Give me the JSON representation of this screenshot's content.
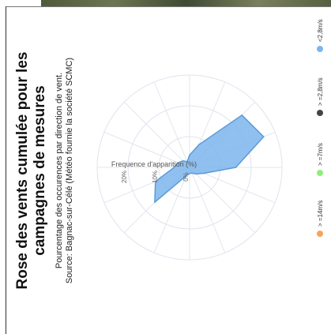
{
  "chart_data": {
    "type": "polar-area",
    "title_lines": [
      "Rose des vents cumulée pour les",
      "campagnes de mesures"
    ],
    "subtitle_lines": [
      "Pourcentage des occurences par direction de vent.",
      "Source: Bagnac-sur-Célé (Météo fournie la société SCMC)"
    ],
    "axis_title": "Frequence d'apparition (%)",
    "radial_ticks": [
      "0%",
      "10%",
      "20%"
    ],
    "radial_max": 30,
    "directions": [
      0,
      22.5,
      45,
      67.5,
      90,
      112.5,
      135,
      157.5,
      180,
      202.5,
      225,
      247.5,
      270,
      292.5,
      315,
      337.5
    ],
    "series": [
      {
        "name": "<2,8m/s",
        "color": "#7cb5ec",
        "values": [
          5,
          4,
          3,
          2,
          4,
          8,
          24,
          26,
          15,
          5,
          3,
          2,
          2,
          3,
          16,
          12
        ]
      },
      {
        "name": "> =2,8m/s",
        "color": "#434348",
        "values": [
          0,
          0,
          0,
          0,
          0,
          0,
          0,
          0,
          0,
          0,
          0,
          0,
          0,
          0,
          0,
          0
        ]
      },
      {
        "name": "> =7m/s",
        "color": "#90ed7d",
        "values": [
          0,
          0,
          0,
          0,
          0,
          0,
          0,
          0,
          0,
          0,
          0,
          0,
          0,
          0,
          0,
          0
        ]
      },
      {
        "name": "> =14m/s",
        "color": "#f7a35c",
        "values": [
          0,
          0,
          0,
          0,
          0,
          0,
          0,
          0,
          0,
          0,
          0,
          0,
          0,
          0,
          0,
          0
        ]
      }
    ],
    "legend_position": "right",
    "grid": true
  }
}
